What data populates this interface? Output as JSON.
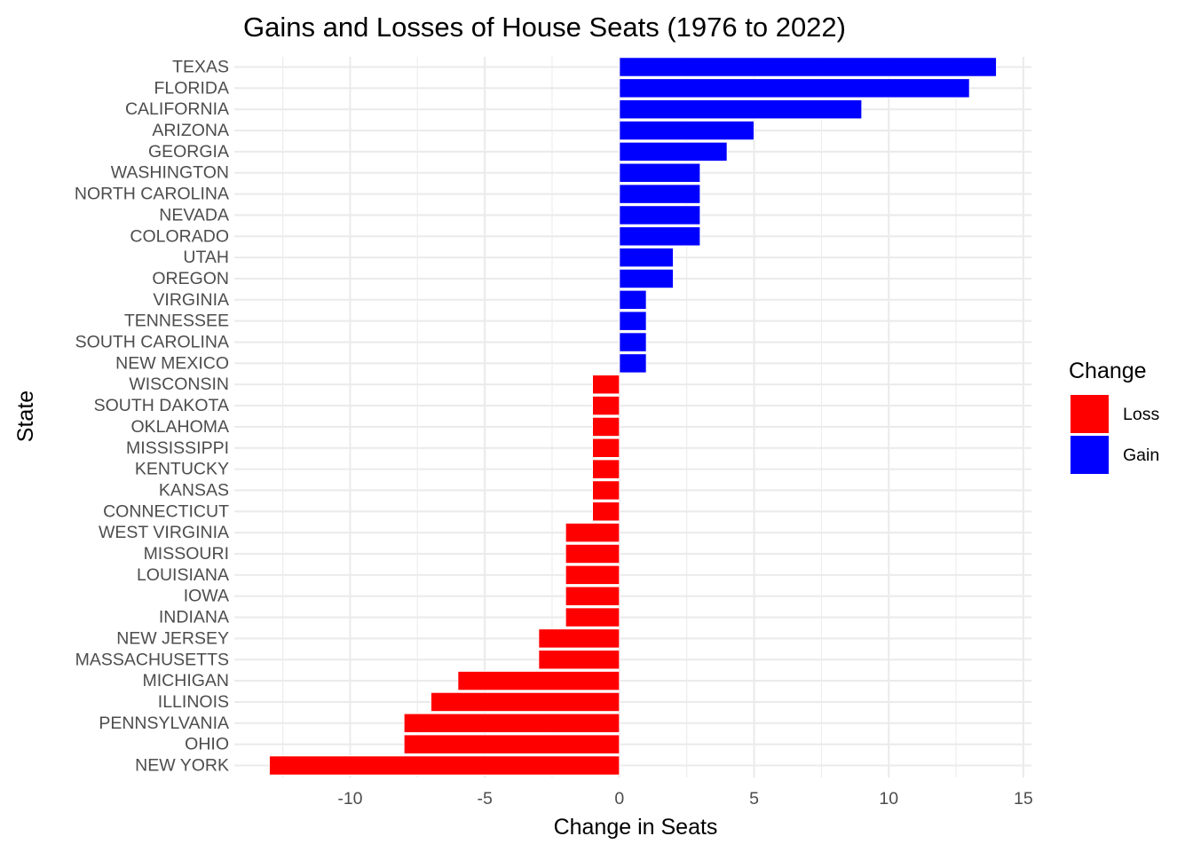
{
  "chart_data": {
    "type": "bar",
    "orientation": "horizontal",
    "title": "Gains and Losses of House Seats (1976 to 2022)",
    "xlabel": "Change in Seats",
    "ylabel": "State",
    "xlim": [
      -14.3,
      15.3
    ],
    "xticks": [
      -10,
      -5,
      0,
      5,
      10,
      15
    ],
    "xtick_labels": [
      "-10",
      "-5",
      "0",
      "5",
      "10",
      "15"
    ],
    "grid": true,
    "legend": {
      "title": "Change",
      "placement": "right",
      "entries": [
        {
          "label": "Loss",
          "color": "#ff0000"
        },
        {
          "label": "Gain",
          "color": "#0000ff"
        }
      ]
    },
    "categories": [
      "TEXAS",
      "FLORIDA",
      "CALIFORNIA",
      "ARIZONA",
      "GEORGIA",
      "WASHINGTON",
      "NORTH CAROLINA",
      "NEVADA",
      "COLORADO",
      "UTAH",
      "OREGON",
      "VIRGINIA",
      "TENNESSEE",
      "SOUTH CAROLINA",
      "NEW MEXICO",
      "WISCONSIN",
      "SOUTH DAKOTA",
      "OKLAHOMA",
      "MISSISSIPPI",
      "KENTUCKY",
      "KANSAS",
      "CONNECTICUT",
      "WEST VIRGINIA",
      "MISSOURI",
      "LOUISIANA",
      "IOWA",
      "INDIANA",
      "NEW JERSEY",
      "MASSACHUSETTS",
      "MICHIGAN",
      "ILLINOIS",
      "PENNSYLVANIA",
      "OHIO",
      "NEW YORK"
    ],
    "values": [
      14,
      13,
      9,
      5,
      4,
      3,
      3,
      3,
      3,
      2,
      2,
      1,
      1,
      1,
      1,
      -1,
      -1,
      -1,
      -1,
      -1,
      -1,
      -1,
      -2,
      -2,
      -2,
      -2,
      -2,
      -3,
      -3,
      -6,
      -7,
      -8,
      -8,
      -13
    ]
  }
}
